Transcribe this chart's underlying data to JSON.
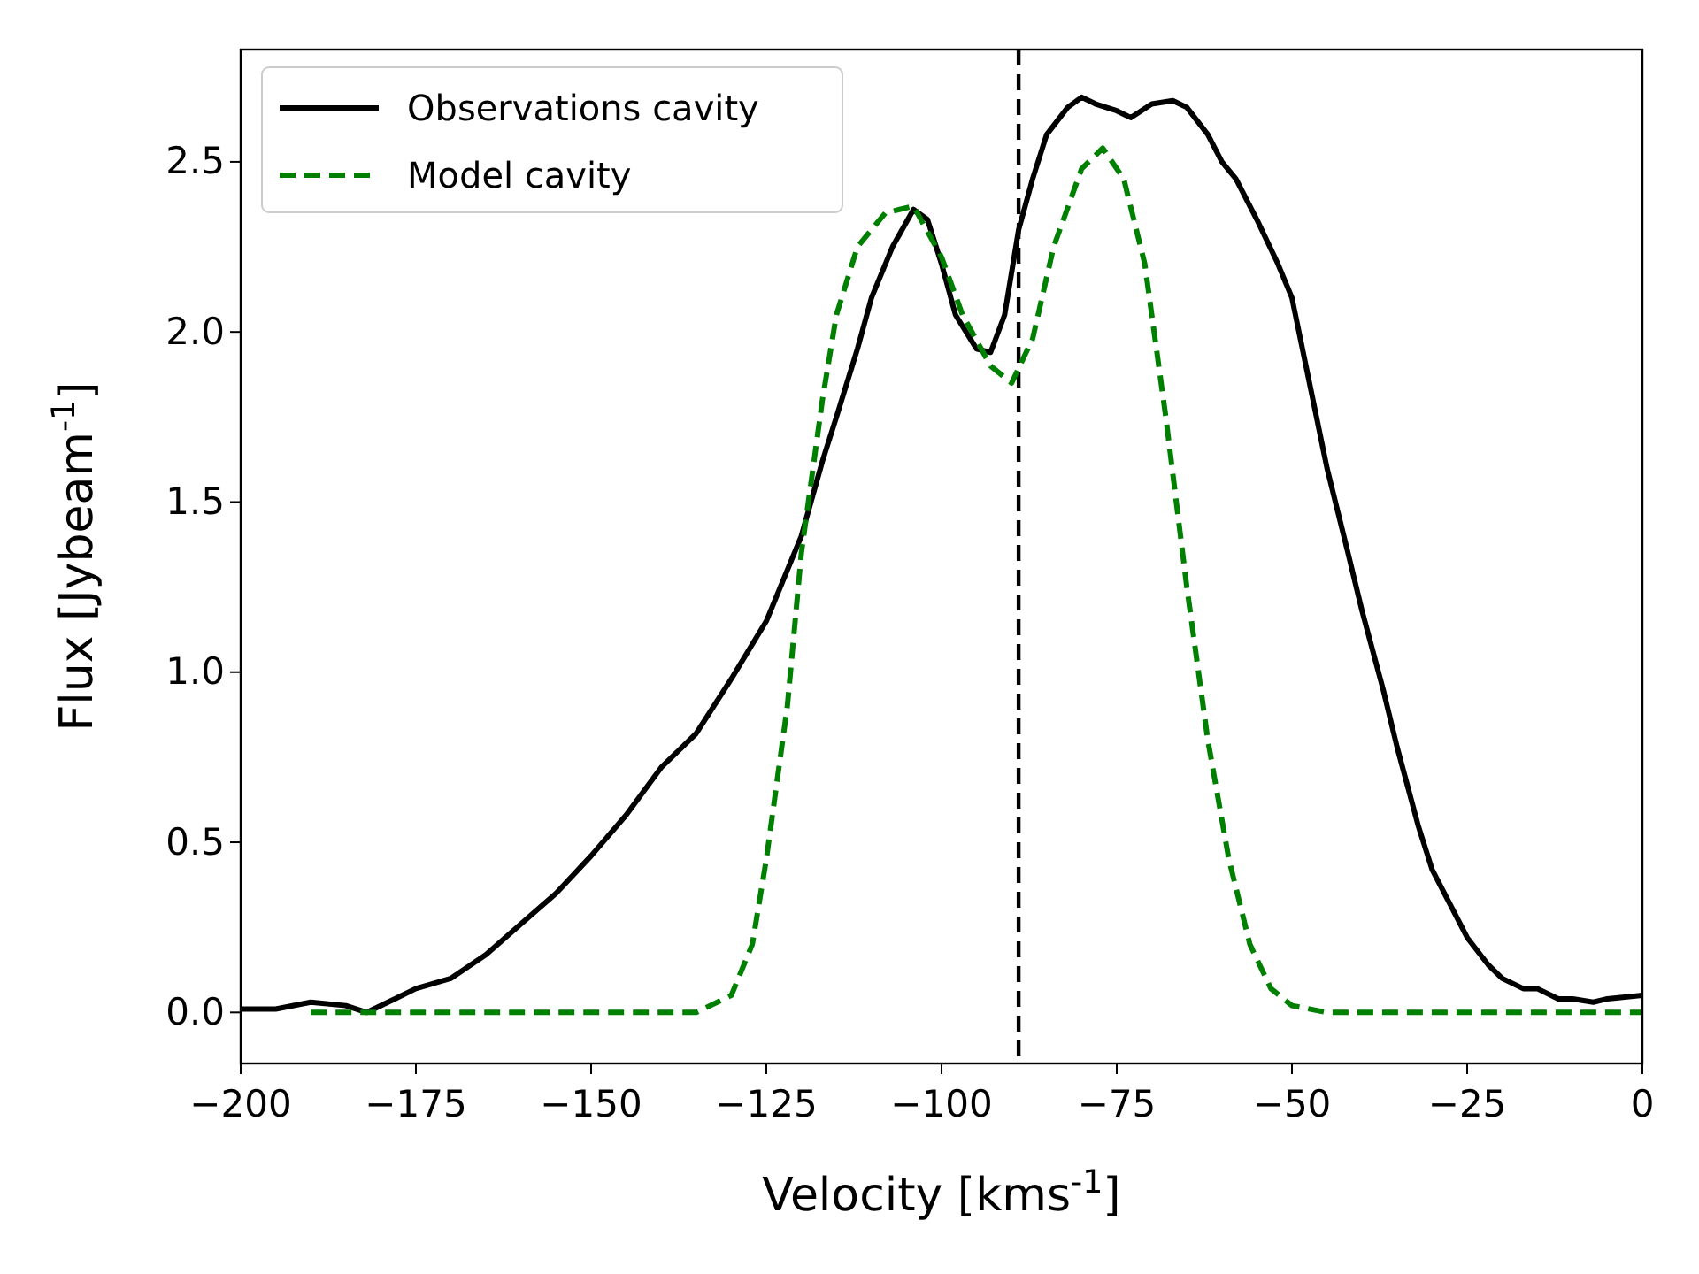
{
  "chart_data": {
    "type": "line",
    "xlabel": "Velocity [kms$^{-1}$]",
    "ylabel": "Flux [Jybeam$^{-1}$]",
    "xlim": [
      -200,
      0
    ],
    "ylim": [
      -0.15,
      2.83
    ],
    "xticks": [
      {
        "value": -200,
        "label": "−200"
      },
      {
        "value": -175,
        "label": "−175"
      },
      {
        "value": -150,
        "label": "−150"
      },
      {
        "value": -125,
        "label": "−125"
      },
      {
        "value": -100,
        "label": "−100"
      },
      {
        "value": -75,
        "label": "−75"
      },
      {
        "value": -50,
        "label": "−50"
      },
      {
        "value": -25,
        "label": "−25"
      },
      0
    ],
    "yticks": [
      {
        "value": 0,
        "label": "0.0"
      },
      0.5,
      {
        "value": 1,
        "label": "1.0"
      },
      1.5,
      {
        "value": 2,
        "label": "2.0"
      },
      2.5
    ],
    "grid": false,
    "legend": "top left",
    "series": [
      {
        "name": "Observations cavity",
        "color": "#000000",
        "line_style": "solid",
        "x": [
          -200,
          -195,
          -190,
          -185,
          -182,
          -178,
          -175,
          -170,
          -165,
          -160,
          -155,
          -150,
          -145,
          -140,
          -135,
          -130,
          -125,
          -120,
          -117,
          -115,
          -112,
          -110,
          -107,
          -104,
          -102,
          -100,
          -98,
          -95,
          -93,
          -91,
          -89,
          -87,
          -85,
          -82,
          -80,
          -78,
          -75,
          -73,
          -70,
          -67,
          -65,
          -62,
          -60,
          -58,
          -55,
          -52,
          -50,
          -48,
          -45,
          -42,
          -40,
          -37,
          -35,
          -32,
          -30,
          -27,
          -25,
          -22,
          -20,
          -17,
          -15,
          -12,
          -10,
          -7,
          -5,
          0
        ],
        "values": [
          0.01,
          0.01,
          0.03,
          0.02,
          0.0,
          0.04,
          0.07,
          0.1,
          0.17,
          0.26,
          0.35,
          0.46,
          0.58,
          0.72,
          0.82,
          0.98,
          1.15,
          1.4,
          1.62,
          1.75,
          1.95,
          2.1,
          2.25,
          2.36,
          2.33,
          2.2,
          2.05,
          1.95,
          1.94,
          2.05,
          2.3,
          2.45,
          2.58,
          2.66,
          2.69,
          2.67,
          2.65,
          2.63,
          2.67,
          2.68,
          2.66,
          2.58,
          2.5,
          2.45,
          2.33,
          2.2,
          2.1,
          1.9,
          1.6,
          1.35,
          1.18,
          0.95,
          0.78,
          0.55,
          0.42,
          0.3,
          0.22,
          0.14,
          0.1,
          0.07,
          0.07,
          0.04,
          0.04,
          0.03,
          0.04,
          0.05
        ]
      },
      {
        "name": "Model cavity",
        "color": "#008000",
        "line_style": "dashed",
        "x": [
          -190,
          -135,
          -130,
          -127,
          -125,
          -122,
          -120,
          -117,
          -115,
          -112,
          -108,
          -104,
          -100,
          -97,
          -93,
          -90,
          -87,
          -84,
          -80,
          -77,
          -74,
          -71,
          -68,
          -65,
          -62,
          -59,
          -56,
          -53,
          -50,
          -45,
          0
        ],
        "values": [
          0,
          0.0,
          0.05,
          0.2,
          0.45,
          0.9,
          1.35,
          1.8,
          2.05,
          2.25,
          2.35,
          2.37,
          2.22,
          2.05,
          1.9,
          1.85,
          1.98,
          2.25,
          2.48,
          2.54,
          2.45,
          2.2,
          1.75,
          1.25,
          0.8,
          0.45,
          0.2,
          0.07,
          0.02,
          0.0,
          0.0
        ]
      }
    ],
    "ref_lines": [
      {
        "axis": "x",
        "value": -89,
        "color": "#000000",
        "line_style": "dashed"
      }
    ]
  }
}
